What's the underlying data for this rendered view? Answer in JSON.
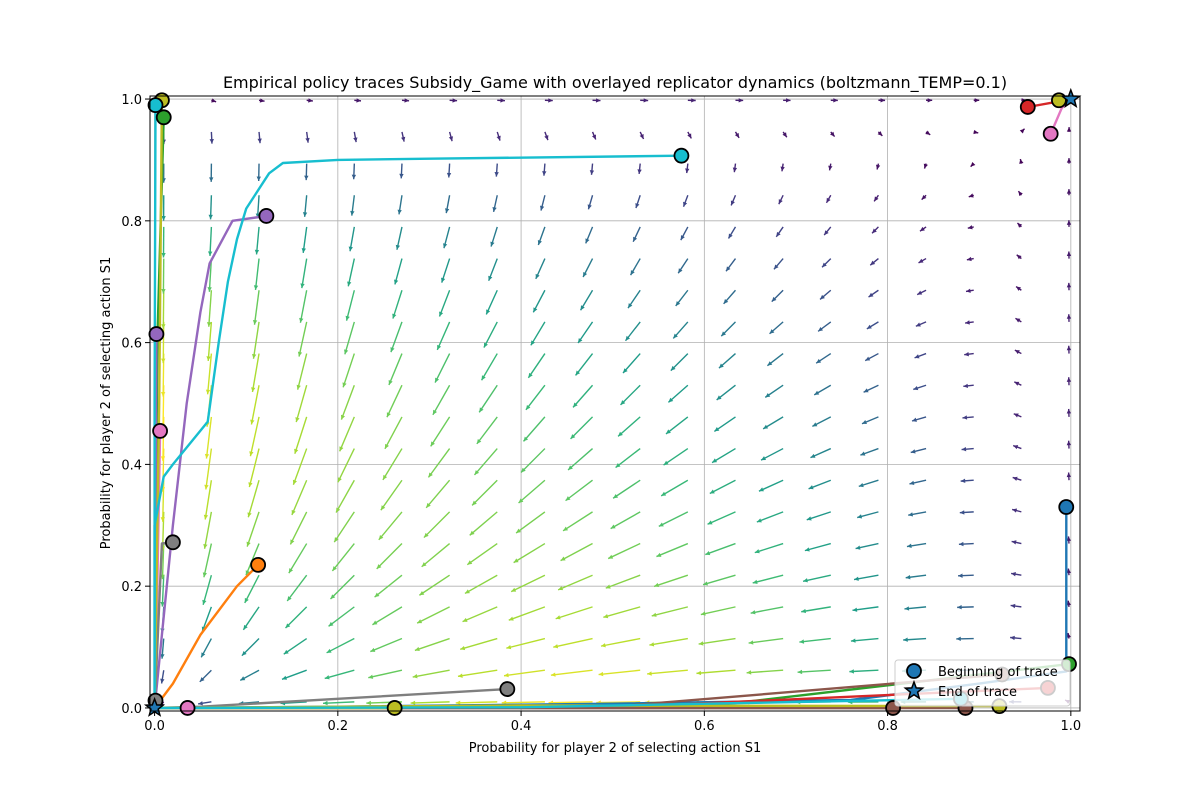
{
  "chart_data": {
    "type": "scatter",
    "title": "Empirical policy traces Subsidy_Game with overlayed replicator dynamics (boltzmann_TEMP=0.1)",
    "xlabel": "Probability for player 2 of selecting action S1",
    "ylabel": "Probability for player 2 of selecting action S1",
    "xlim": [
      -0.005,
      1.01
    ],
    "ylim": [
      -0.005,
      1.005
    ],
    "xticks": [
      "0.0",
      "0.2",
      "0.4",
      "0.6",
      "0.8",
      "1.0"
    ],
    "yticks": [
      "0.0",
      "0.2",
      "0.4",
      "0.6",
      "0.8",
      "1.0"
    ],
    "grid": true,
    "legend": {
      "placement": "lower-right",
      "entries": [
        {
          "label": "Beginning of trace",
          "marker": "circle"
        },
        {
          "label": "End of trace",
          "marker": "star"
        }
      ]
    },
    "quiver_grid": {
      "start": 0.01,
      "step": 0.052,
      "count": 20
    },
    "traces": [
      {
        "color": "#1f77b4",
        "points": [
          [
            0.995,
            0.33
          ],
          [
            0.995,
            0.06
          ],
          [
            0.9,
            0.04
          ],
          [
            0.76,
            0.013
          ],
          [
            0.5,
            0.007
          ],
          [
            0.2,
            0.002
          ],
          [
            0.0,
            0.0
          ]
        ]
      },
      {
        "color": "#ff7f0e",
        "points": [
          [
            0.113,
            0.235
          ],
          [
            0.09,
            0.2
          ],
          [
            0.05,
            0.12
          ],
          [
            0.02,
            0.04
          ],
          [
            0.0,
            0.0
          ]
        ]
      },
      {
        "color": "#2ca02c",
        "points": [
          [
            0.01,
            0.97
          ],
          [
            0.003,
            0.6
          ],
          [
            0.001,
            0.2
          ],
          [
            0.0,
            0.0
          ]
        ]
      },
      {
        "color": "#2ca02c",
        "points": [
          [
            0.998,
            0.072
          ],
          [
            0.6,
            0.002
          ],
          [
            0.0,
            0.0
          ]
        ]
      },
      {
        "color": "#d62728",
        "points": [
          [
            0.953,
            0.987
          ],
          [
            0.99,
            0.997
          ],
          [
            1.0,
            1.0
          ]
        ]
      },
      {
        "color": "#d62728",
        "points": [
          [
            0.975,
            0.033
          ],
          [
            0.5,
            0.001
          ],
          [
            0.0,
            0.0
          ]
        ]
      },
      {
        "color": "#9467bd",
        "points": [
          [
            0.122,
            0.808
          ],
          [
            0.085,
            0.8
          ],
          [
            0.06,
            0.73
          ],
          [
            0.05,
            0.65
          ],
          [
            0.035,
            0.5
          ],
          [
            0.02,
            0.3
          ],
          [
            0.008,
            0.12
          ],
          [
            0.0,
            0.0
          ]
        ]
      },
      {
        "color": "#9467bd",
        "points": [
          [
            0.002,
            0.614
          ],
          [
            0.001,
            0.3
          ],
          [
            0.0,
            0.0
          ]
        ]
      },
      {
        "color": "#8c564b",
        "points": [
          [
            0.925,
            0.055
          ],
          [
            0.5,
            0.002
          ],
          [
            0.0,
            0.0
          ]
        ]
      },
      {
        "color": "#8c564b",
        "points": [
          [
            0.885,
            0.0
          ],
          [
            0.4,
            0.0
          ],
          [
            0.0,
            0.0
          ]
        ]
      },
      {
        "color": "#8c564b",
        "points": [
          [
            0.806,
            0.0
          ],
          [
            0.3,
            0.0
          ],
          [
            0.0,
            0.0
          ]
        ]
      },
      {
        "color": "#e377c2",
        "points": [
          [
            0.978,
            0.943
          ],
          [
            0.99,
            0.985
          ],
          [
            1.0,
            1.0
          ]
        ]
      },
      {
        "color": "#e377c2",
        "points": [
          [
            0.006,
            0.455
          ],
          [
            0.003,
            0.2
          ],
          [
            0.0,
            0.0
          ]
        ]
      },
      {
        "color": "#e377c2",
        "points": [
          [
            0.036,
            0.0
          ],
          [
            0.0,
            0.0
          ]
        ]
      },
      {
        "color": "#7f7f7f",
        "points": [
          [
            0.385,
            0.031
          ],
          [
            0.2,
            0.015
          ],
          [
            0.05,
            0.002
          ],
          [
            0.0,
            0.0
          ]
        ]
      },
      {
        "color": "#7f7f7f",
        "points": [
          [
            0.02,
            0.272
          ],
          [
            0.008,
            0.27
          ],
          [
            0.003,
            0.1
          ],
          [
            0.0,
            0.0
          ]
        ]
      },
      {
        "color": "#7f7f7f",
        "points": [
          [
            0.001,
            0.012
          ],
          [
            0.0,
            0.0
          ]
        ]
      },
      {
        "color": "#bcbd22",
        "points": [
          [
            0.008,
            0.998
          ],
          [
            0.005,
            0.5
          ],
          [
            0.0,
            0.0
          ]
        ]
      },
      {
        "color": "#bcbd22",
        "points": [
          [
            0.987,
            0.998
          ],
          [
            1.0,
            1.0
          ]
        ]
      },
      {
        "color": "#bcbd22",
        "points": [
          [
            0.922,
            0.003
          ],
          [
            0.4,
            0.004
          ],
          [
            0.0,
            0.0
          ]
        ]
      },
      {
        "color": "#bcbd22",
        "points": [
          [
            0.262,
            0.0
          ],
          [
            0.0,
            0.0
          ]
        ]
      },
      {
        "color": "#17becf",
        "points": [
          [
            0.575,
            0.907
          ],
          [
            0.3,
            0.902
          ],
          [
            0.2,
            0.9
          ],
          [
            0.14,
            0.895
          ],
          [
            0.125,
            0.878
          ],
          [
            0.1,
            0.82
          ],
          [
            0.09,
            0.77
          ],
          [
            0.08,
            0.7
          ],
          [
            0.07,
            0.6
          ],
          [
            0.058,
            0.47
          ],
          [
            0.02,
            0.4
          ],
          [
            0.01,
            0.38
          ],
          [
            0.0,
            0.3
          ],
          [
            0.0,
            0.0
          ]
        ]
      },
      {
        "color": "#17becf",
        "points": [
          [
            0.001,
            0.99
          ],
          [
            0.0,
            0.5
          ],
          [
            0.0,
            0.0
          ]
        ]
      },
      {
        "color": "#17becf",
        "points": [
          [
            0.88,
            0.015
          ],
          [
            0.4,
            0.001
          ],
          [
            0.0,
            0.0
          ]
        ]
      }
    ],
    "end_points": [
      [
        0.0,
        0.0
      ],
      [
        1.0,
        1.0
      ]
    ]
  }
}
